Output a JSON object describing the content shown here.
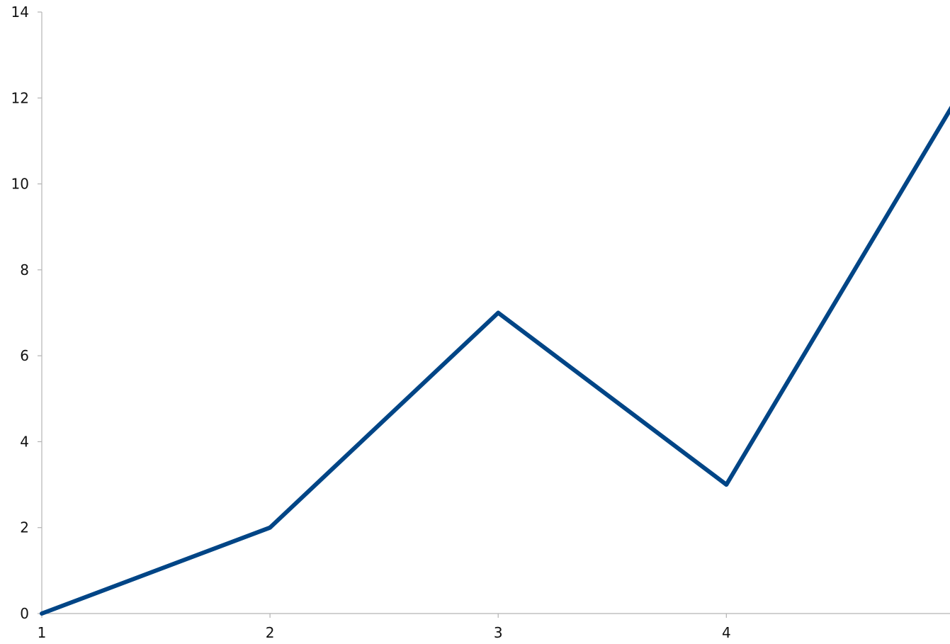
{
  "chart_data": {
    "type": "line",
    "title": "",
    "xlabel": "",
    "ylabel": "",
    "x": [
      1,
      2,
      3,
      4,
      5
    ],
    "x_tick_labels": [
      "1",
      "2",
      "3",
      "4"
    ],
    "y_tick_labels": [
      "0",
      "2",
      "4",
      "6",
      "8",
      "10",
      "12",
      "14"
    ],
    "xlim": [
      1,
      4.98
    ],
    "ylim": [
      0,
      14
    ],
    "grid": false,
    "legend": "none",
    "series": [
      {
        "values": [
          0,
          2,
          7,
          3,
          11.9
        ],
        "color": "#004586"
      }
    ],
    "axis_color": "#b3b3b3"
  }
}
